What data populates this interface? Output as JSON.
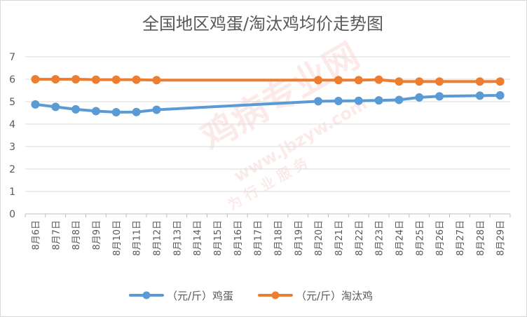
{
  "chart_data": {
    "type": "line",
    "title": "全国地区鸡蛋/淘汰鸡均价走势图",
    "categories": [
      "8月6日",
      "8月7日",
      "8月8日",
      "8月9日",
      "8月10日",
      "8月11日",
      "8月12日",
      "8月13日",
      "8月14日",
      "8月15日",
      "8月16日",
      "8月17日",
      "8月18日",
      "8月19日",
      "8月20日",
      "8月21日",
      "8月22日",
      "8月23日",
      "8月24日",
      "8月25日",
      "8月26日",
      "8月27日",
      "8月28日",
      "8月29日"
    ],
    "series": [
      {
        "name": "（元/斤）鸡蛋",
        "color": "#5b9bd5",
        "values": [
          4.88,
          4.77,
          4.66,
          4.58,
          4.53,
          4.54,
          4.64,
          null,
          null,
          null,
          null,
          null,
          null,
          null,
          5.02,
          5.03,
          5.04,
          5.06,
          5.08,
          5.19,
          5.24,
          null,
          5.27,
          5.28
        ]
      },
      {
        "name": "（元/斤）淘汰鸡",
        "color": "#ed7d31",
        "values": [
          6.0,
          6.0,
          6.0,
          5.98,
          5.98,
          5.98,
          5.96,
          null,
          null,
          null,
          null,
          null,
          null,
          null,
          5.96,
          5.96,
          5.96,
          5.98,
          5.9,
          5.9,
          5.9,
          null,
          5.9,
          5.9
        ]
      }
    ],
    "ylim": [
      0,
      7
    ],
    "yticks": [
      0,
      1,
      2,
      3,
      4,
      5,
      6,
      7
    ],
    "grid": true,
    "legend_position": "bottom"
  },
  "watermark": {
    "text_main": "鸡病专业网",
    "text_url": "www.jbzyw.com",
    "text_sub": "为 行 业 服 务"
  }
}
